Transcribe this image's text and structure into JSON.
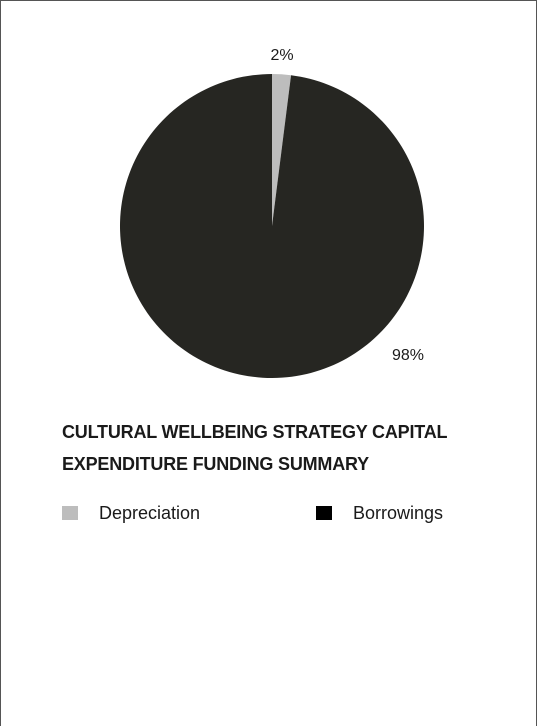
{
  "chart_data": {
    "type": "pie",
    "title": "CULTURAL WELLBEING STRATEGY CAPITAL EXPENDITURE FUNDING SUMMARY",
    "legend_position": "bottom",
    "slices": [
      {
        "label": "Depreciation",
        "value": 2,
        "value_label": "2%",
        "color": "#bdbdbd"
      },
      {
        "label": "Borrowings",
        "value": 98,
        "value_label": "98%",
        "color": "#262622"
      }
    ]
  },
  "legend_swatch_colors": [
    "#bdbdbd",
    "#000000"
  ]
}
